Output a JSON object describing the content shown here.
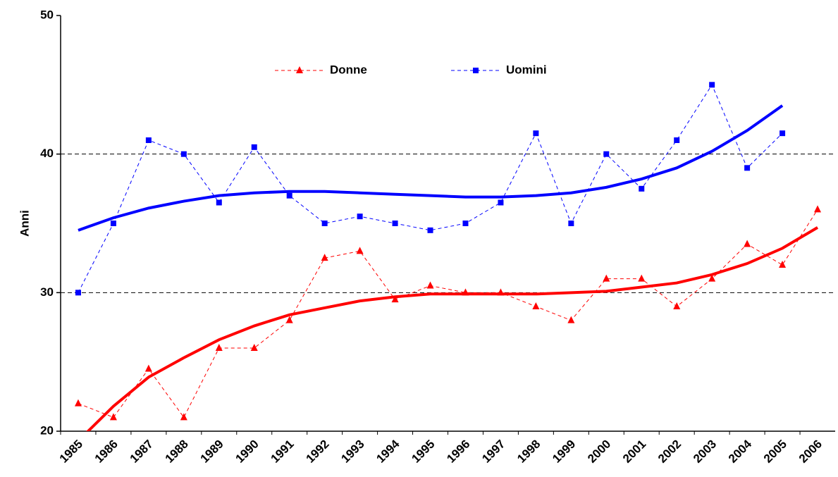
{
  "chart_data": {
    "type": "line",
    "y_label": "Anni",
    "categories": [
      "1985",
      "1986",
      "1987",
      "1988",
      "1989",
      "1990",
      "1991",
      "1992",
      "1993",
      "1994",
      "1995",
      "1996",
      "1997",
      "1998",
      "1999",
      "2000",
      "2001",
      "2002",
      "2003",
      "2004",
      "2005",
      "2006"
    ],
    "series": [
      {
        "name": "Donne",
        "color": "#ff0000",
        "marker": "triangle",
        "values": [
          22,
          21,
          24.5,
          21,
          26,
          26,
          28,
          32.5,
          33,
          29.5,
          30.5,
          30,
          30,
          29,
          28,
          31,
          31,
          29,
          31,
          33.5,
          32,
          36
        ]
      },
      {
        "name": "Uomini",
        "color": "#0000ff",
        "marker": "square",
        "values": [
          30,
          35,
          41,
          40,
          36.5,
          40.5,
          37,
          35,
          35.5,
          35,
          34.5,
          35,
          36.5,
          41.5,
          35,
          40,
          37.5,
          41,
          45,
          39,
          41.5,
          null
        ]
      }
    ],
    "trendlines": [
      {
        "color": "#ff0000",
        "values": [
          19.3,
          21.8,
          23.9,
          25.3,
          26.6,
          27.6,
          28.4,
          28.9,
          29.4,
          29.7,
          29.9,
          29.9,
          29.9,
          29.9,
          30.0,
          30.1,
          30.4,
          30.7,
          31.3,
          32.1,
          33.2,
          34.7
        ]
      },
      {
        "color": "#0000ff",
        "values": [
          34.5,
          35.4,
          36.1,
          36.6,
          37.0,
          37.2,
          37.3,
          37.3,
          37.2,
          37.1,
          37.0,
          36.9,
          36.9,
          37.0,
          37.2,
          37.6,
          38.2,
          39.0,
          40.2,
          41.7,
          43.5,
          null
        ]
      }
    ],
    "ylim": [
      20,
      50
    ],
    "yticks": [
      20,
      30,
      40,
      50
    ],
    "grid": true
  }
}
